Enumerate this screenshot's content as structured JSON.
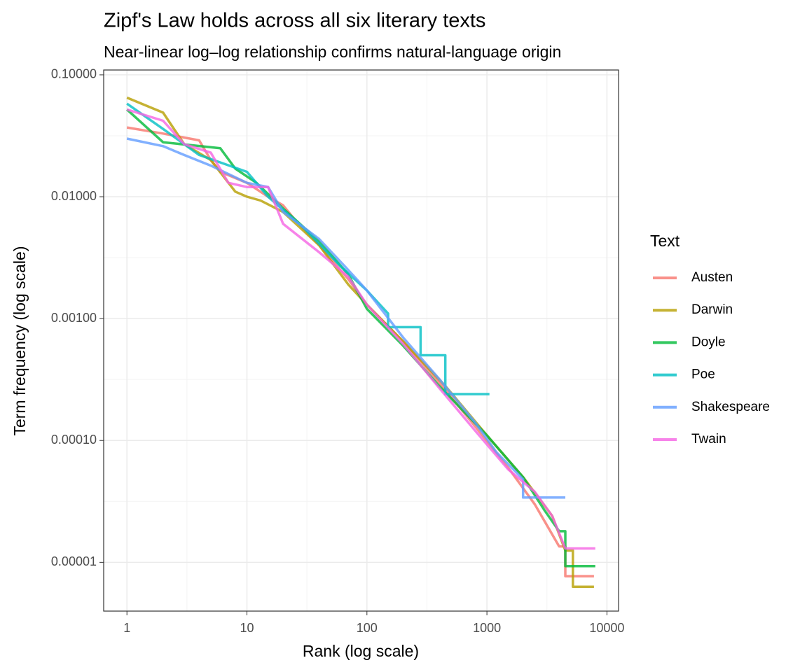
{
  "chart_data": {
    "type": "line",
    "title": "Zipf's Law holds across all six literary texts",
    "subtitle": "Near-linear log–log relationship confirms natural-language origin",
    "x_label": "Rank (log scale)",
    "y_label": "Term frequency (log scale)",
    "xlog": true,
    "ylog": true,
    "grid": true,
    "legend_position": "right",
    "legend_title": "Text",
    "xlim": [
      0.64,
      12500
    ],
    "ylim": [
      3.98e-06,
      0.1096
    ],
    "xticks": [
      1,
      10,
      100,
      1000,
      10000
    ],
    "yticks": [
      {
        "value": 0.1,
        "label": "0.10000"
      },
      {
        "value": 0.01,
        "label": "0.01000"
      },
      {
        "value": 0.001,
        "label": "0.00100"
      },
      {
        "value": 0.0001,
        "label": "0.00010"
      },
      {
        "value": 1e-05,
        "label": "0.00001"
      }
    ],
    "series": [
      {
        "name": "Austen",
        "color": "#F8766D",
        "x": [
          1,
          2,
          4,
          5,
          6,
          10,
          15,
          20,
          25,
          40,
          70,
          100,
          200,
          400,
          800,
          1500,
          2500,
          4000,
          4500,
          4500,
          7800
        ],
        "values": [
          0.037,
          0.033,
          0.029,
          0.02,
          0.016,
          0.013,
          0.01,
          0.0085,
          0.0065,
          0.004,
          0.0021,
          0.0013,
          0.00065,
          0.0003,
          0.00013,
          6e-05,
          3e-05,
          1.35e-05,
          1.35e-05,
          7.7e-06,
          7.7e-06
        ]
      },
      {
        "name": "Darwin",
        "color": "#B79F00",
        "x": [
          1,
          2,
          3,
          5,
          8,
          10,
          13,
          20,
          40,
          70,
          100,
          200,
          450,
          1000,
          2000,
          3500,
          4500,
          5200,
          5200,
          7800
        ],
        "values": [
          0.065,
          0.049,
          0.027,
          0.02,
          0.011,
          0.01,
          0.0093,
          0.0075,
          0.004,
          0.0019,
          0.0013,
          0.00065,
          0.00028,
          0.00011,
          5e-05,
          2.4e-05,
          1.25e-05,
          1.25e-05,
          6.3e-06,
          6.3e-06
        ]
      },
      {
        "name": "Doyle",
        "color": "#00BA38",
        "x": [
          1,
          2,
          6,
          8,
          12,
          20,
          40,
          70,
          100,
          200,
          400,
          1000,
          2000,
          3000,
          4000,
          4500,
          4500,
          8000
        ],
        "values": [
          0.052,
          0.028,
          0.025,
          0.017,
          0.013,
          0.008,
          0.0043,
          0.0023,
          0.0012,
          0.0006,
          0.00028,
          0.00011,
          5e-05,
          2.7e-05,
          1.8e-05,
          1.8e-05,
          9.3e-06,
          9.3e-06
        ]
      },
      {
        "name": "Poe",
        "color": "#00BFC4",
        "x": [
          1,
          2,
          4,
          10,
          15,
          30,
          60,
          100,
          150,
          150,
          280,
          280,
          450,
          450,
          1050
        ],
        "values": [
          0.058,
          0.036,
          0.022,
          0.016,
          0.01,
          0.0055,
          0.0027,
          0.0017,
          0.0011,
          0.00085,
          0.00085,
          0.0005,
          0.0005,
          0.00024,
          0.00024
        ]
      },
      {
        "name": "Shakespeare",
        "color": "#619CFF",
        "x": [
          1,
          2,
          3,
          5,
          10,
          15,
          20,
          40,
          70,
          100,
          200,
          400,
          800,
          1200,
          2000,
          2000,
          4500
        ],
        "values": [
          0.03,
          0.026,
          0.022,
          0.018,
          0.013,
          0.012,
          0.0075,
          0.0045,
          0.0025,
          0.0017,
          0.0007,
          0.00032,
          0.00014,
          8e-05,
          4.8e-05,
          3.4e-05,
          3.4e-05
        ]
      },
      {
        "name": "Twain",
        "color": "#F564E3",
        "x": [
          1,
          2,
          3,
          5,
          7,
          10,
          15,
          20,
          40,
          70,
          100,
          200,
          400,
          800,
          1500,
          2500,
          3500,
          4500,
          8000
        ],
        "values": [
          0.052,
          0.042,
          0.027,
          0.023,
          0.013,
          0.012,
          0.012,
          0.006,
          0.0035,
          0.0022,
          0.0013,
          0.00062,
          0.00027,
          0.00012,
          5.8e-05,
          3.8e-05,
          2.4e-05,
          1.3e-05,
          1.3e-05
        ]
      }
    ]
  }
}
